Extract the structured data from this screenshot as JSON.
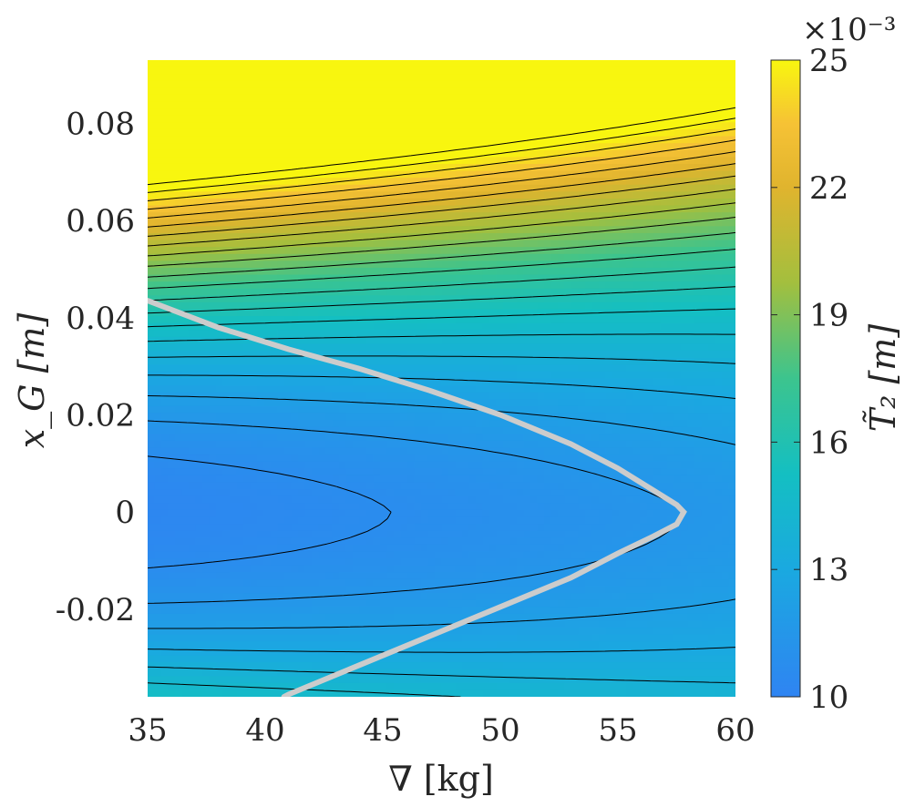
{
  "chart_data": {
    "type": "heatmap",
    "subtype": "filled contour with contour lines and highlighted reference curve",
    "title": "",
    "xlabel": "∇ [kg]",
    "ylabel": "x_G [m]",
    "xlim": [
      35,
      60
    ],
    "ylim": [
      -0.038,
      0.093
    ],
    "x_ticks": [
      "35",
      "40",
      "45",
      "50",
      "55",
      "60"
    ],
    "y_ticks": [
      "-0.02",
      "0",
      "0.02",
      "0.04",
      "0.06",
      "0.08"
    ],
    "colorbar": {
      "label": "T̃₂ [m]",
      "exponent_label": "×10⁻³",
      "range": [
        10,
        25
      ],
      "ticks": [
        "10",
        "13",
        "16",
        "19",
        "22",
        "25"
      ],
      "colormap": "parula",
      "colors": [
        "#3e26a8",
        "#2e87f7",
        "#1ab1d4",
        "#33c19e",
        "#a9bf37",
        "#fbb938",
        "#f9fb0e"
      ]
    },
    "field": {
      "description": "value approx 10.4 + 0.55*(V-35)/25 + 9*(xG-0.004)^2/... ; minimum near V=35, xG=0",
      "min_value": 10.2,
      "max_value": 25
    },
    "highlight_curve": {
      "color": "#cccccc",
      "points_x": [
        35,
        38,
        41,
        44,
        47,
        50,
        53,
        55,
        56.5,
        57.5,
        57.8,
        57.5,
        56.5,
        55,
        53,
        50,
        47,
        44,
        41,
        40.8
      ],
      "points_y": [
        0.0435,
        0.038,
        0.0335,
        0.0295,
        0.025,
        0.02,
        0.014,
        0.009,
        0.0045,
        0.0015,
        0,
        -0.0025,
        -0.005,
        -0.0085,
        -0.0135,
        -0.0195,
        -0.0255,
        -0.0315,
        -0.0375,
        -0.038
      ]
    }
  }
}
